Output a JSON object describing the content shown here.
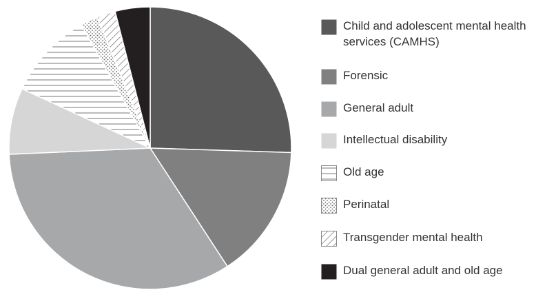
{
  "chart_data": {
    "type": "pie",
    "categories": [
      "Child and adolescent mental health services (CAMHS)",
      "Forensic",
      "General adult",
      "Intellectual disability",
      "Old age",
      "Perinatal",
      "Transgender mental health",
      "Dual general adult and old age"
    ],
    "values": [
      25.5,
      15.3,
      33.5,
      7.6,
      10,
      2,
      2.1,
      4
    ],
    "colors": [
      "#595959",
      "#808080",
      "#a7a8aa",
      "#d6d6d6",
      "#ffffff",
      "#ffffff",
      "#ffffff",
      "#231f20"
    ],
    "patterns": [
      "solid",
      "solid",
      "solid",
      "solid",
      "horizontal",
      "dots",
      "diagonal",
      "solid"
    ],
    "legend": "right"
  }
}
